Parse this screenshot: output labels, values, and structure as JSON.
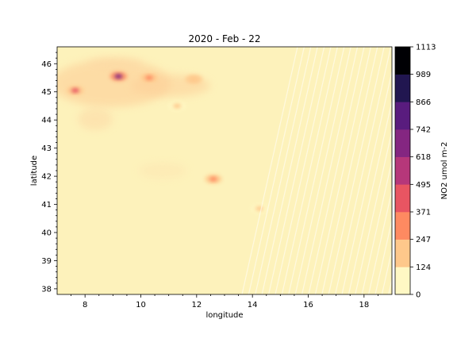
{
  "chart_data": {
    "type": "heatmap",
    "title": "2020 - Feb - 22",
    "xlabel": "longitude",
    "ylabel": "latitude",
    "xlim": [
      7.0,
      19.0
    ],
    "ylim": [
      37.8,
      46.6
    ],
    "x_ticks": [
      8,
      10,
      12,
      14,
      16,
      18
    ],
    "y_ticks": [
      38,
      39,
      40,
      41,
      42,
      43,
      44,
      45,
      46
    ],
    "colorbar": {
      "label": "NO2 umol m-2",
      "levels": [
        0,
        124,
        247,
        371,
        495,
        618,
        742,
        866,
        989,
        1113
      ],
      "colors": [
        "#fff8c4",
        "#fec88b",
        "#fe8a61",
        "#e85562",
        "#b6377a",
        "#842681",
        "#591c7e",
        "#211650",
        "#000004"
      ]
    },
    "background_color": "#fdf2bb",
    "hotspots": [
      {
        "lon": 9.2,
        "lat": 45.55,
        "value": 650
      },
      {
        "lon": 7.65,
        "lat": 45.05,
        "value": 420
      },
      {
        "lon": 12.6,
        "lat": 41.9,
        "value": 300
      },
      {
        "lon": 10.3,
        "lat": 45.5,
        "value": 260
      },
      {
        "lon": 11.9,
        "lat": 45.45,
        "value": 230
      },
      {
        "lon": 11.3,
        "lat": 44.5,
        "value": 190
      },
      {
        "lon": 14.25,
        "lat": 40.85,
        "value": 150
      }
    ]
  }
}
